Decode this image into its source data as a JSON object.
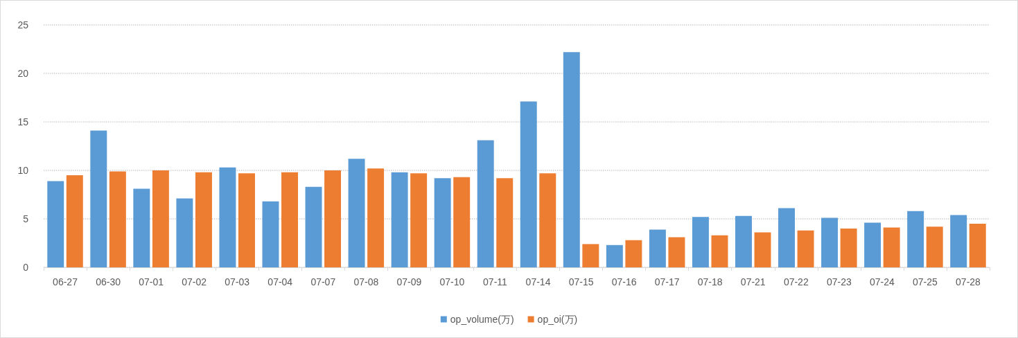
{
  "chart_data": {
    "type": "bar",
    "categories": [
      "06-27",
      "06-30",
      "07-01",
      "07-02",
      "07-03",
      "07-04",
      "07-07",
      "07-08",
      "07-09",
      "07-10",
      "07-11",
      "07-14",
      "07-15",
      "07-16",
      "07-17",
      "07-18",
      "07-21",
      "07-22",
      "07-23",
      "07-24",
      "07-25",
      "07-28"
    ],
    "series": [
      {
        "name": "op_volume(万)",
        "color": "#5b9bd5",
        "values": [
          8.9,
          14.1,
          8.1,
          7.1,
          10.3,
          6.8,
          8.3,
          11.2,
          9.8,
          9.2,
          13.1,
          17.1,
          22.2,
          2.3,
          3.9,
          5.2,
          5.3,
          6.1,
          5.1,
          4.6,
          5.8,
          5.4
        ]
      },
      {
        "name": "op_oi(万)",
        "color": "#ed7d31",
        "values": [
          9.5,
          9.9,
          10.0,
          9.8,
          9.7,
          9.8,
          10.0,
          10.2,
          9.7,
          9.3,
          9.2,
          9.7,
          2.4,
          2.8,
          3.1,
          3.3,
          3.6,
          3.8,
          4.0,
          4.1,
          4.2,
          4.5
        ]
      }
    ],
    "ylim": [
      0,
      25
    ],
    "yticks": [
      0,
      5,
      10,
      15,
      20,
      25
    ],
    "grid": "y",
    "legend": "bottom"
  }
}
